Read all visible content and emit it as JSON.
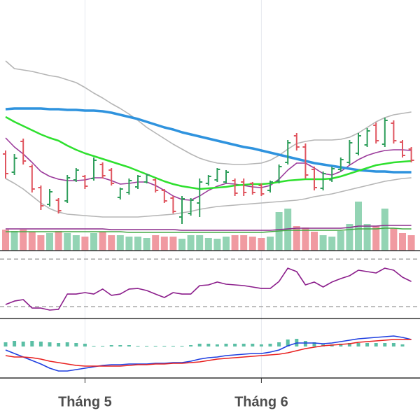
{
  "chart_data": [
    {
      "type": "ohlc",
      "ylim": [
        0,
        35
      ],
      "up_color": "#2e9e5b",
      "down_color": "#e0555f",
      "open": [
        13.0,
        10.4,
        14.8,
        11.2,
        8.2,
        5.8,
        6.4,
        6.3,
        9.3,
        9.8,
        9.5,
        11.5,
        10.7,
        6.8,
        7.5,
        8.3,
        9.0,
        9.3,
        7.8,
        6.7,
        4.0,
        4.5,
        6.0,
        8.8,
        9.3,
        9.0,
        9.2,
        9.0,
        8.8,
        8.5,
        7.8,
        9.1,
        11.8,
        15.6,
        14.0,
        10.8,
        8.1,
        9.3,
        10.8,
        11.8,
        13.1,
        14.3,
        17.1,
        14.4,
        17.4,
        14.7,
        13.7
      ],
      "high": [
        13.5,
        13.0,
        15.2,
        11.5,
        8.5,
        8.0,
        6.7,
        10.0,
        11.0,
        10.0,
        12.5,
        11.8,
        11.0,
        8.2,
        9.5,
        10.0,
        10.2,
        9.5,
        8.0,
        7.0,
        7.0,
        6.7,
        9.5,
        10.0,
        11.0,
        10.7,
        9.5,
        9.5,
        9.0,
        8.8,
        9.2,
        11.5,
        15.0,
        16.0,
        14.5,
        11.2,
        10.5,
        11.2,
        12.5,
        15.0,
        16.0,
        16.7,
        17.5,
        18.2,
        17.8,
        15.0,
        14.0
      ],
      "low": [
        9.5,
        10.0,
        11.5,
        7.5,
        5.0,
        5.5,
        4.5,
        6.0,
        9.0,
        8.0,
        9.2,
        9.5,
        8.5,
        6.5,
        7.2,
        8.0,
        8.8,
        7.5,
        6.0,
        4.5,
        3.0,
        4.2,
        4.0,
        8.5,
        9.0,
        8.8,
        7.0,
        7.0,
        7.2,
        7.0,
        7.5,
        8.8,
        11.5,
        13.5,
        9.5,
        7.8,
        7.8,
        9.0,
        10.5,
        11.5,
        12.8,
        14.0,
        14.5,
        14.0,
        14.5,
        12.5,
        11.8
      ],
      "close": [
        10.2,
        12.4,
        12.0,
        8.0,
        5.6,
        7.6,
        4.9,
        9.6,
        10.7,
        8.4,
        12.1,
        9.9,
        8.8,
        8.0,
        9.2,
        9.8,
        10.0,
        7.8,
        6.3,
        4.8,
        6.6,
        6.4,
        9.0,
        9.8,
        10.8,
        10.4,
        7.4,
        7.5,
        7.5,
        7.3,
        9.0,
        11.2,
        14.6,
        14.0,
        10.0,
        8.2,
        10.2,
        10.9,
        12.2,
        14.6,
        15.6,
        16.3,
        14.9,
        17.8,
        14.9,
        12.8,
        12.1
      ],
      "series": [
        {
          "color": "#b5b5b5",
          "values": [
            26.3,
            25.2,
            25.0,
            24.8,
            24.5,
            24.2,
            24.0,
            23.6,
            23.2,
            22.5,
            21.7,
            21.0,
            20.2,
            19.5,
            18.7,
            17.8,
            16.8,
            16.0,
            15.2,
            14.4,
            13.7,
            13.0,
            12.4,
            12.0,
            11.7,
            11.6,
            11.5,
            11.5,
            11.6,
            11.7,
            12.1,
            12.8,
            13.7,
            14.5,
            14.8,
            15.0,
            15.0,
            15.0,
            15.1,
            15.4,
            16.0,
            16.8,
            17.6,
            18.2,
            18.6,
            18.8,
            19.0
          ]
        },
        {
          "color": "#b5b5b5",
          "values": [
            9.5,
            8.8,
            8.0,
            7.0,
            6.0,
            5.2,
            4.7,
            4.4,
            4.3,
            4.2,
            4.1,
            4.0,
            4.0,
            4.0,
            4.0,
            4.0,
            4.1,
            4.2,
            4.3,
            4.4,
            4.6,
            4.8,
            5.1,
            5.3,
            5.5,
            5.6,
            5.7,
            5.8,
            5.9,
            6.0,
            6.1,
            6.2,
            6.3,
            6.4,
            6.6,
            6.9,
            7.1,
            7.3,
            7.6,
            7.9,
            8.2,
            8.5,
            8.8,
            9.1,
            9.3,
            9.5,
            9.6
          ]
        },
        {
          "color": "#9b3a9b",
          "values": [
            15.3,
            14.0,
            13.0,
            11.8,
            10.5,
            9.8,
            9.4,
            9.2,
            9.2,
            9.3,
            9.6,
            9.6,
            9.2,
            8.7,
            8.8,
            9.0,
            9.0,
            8.5,
            7.8,
            7.0,
            6.5,
            6.4,
            7.0,
            7.8,
            8.4,
            8.8,
            8.7,
            8.5,
            8.3,
            8.2,
            8.5,
            9.4,
            10.7,
            11.7,
            11.7,
            11.0,
            10.2,
            10.0,
            10.5,
            11.4,
            12.2,
            12.8,
            13.2,
            13.5,
            13.6,
            13.6,
            13.5
          ]
        },
        {
          "color": "#2f93de",
          "width": 3.5,
          "values": [
            19.4,
            19.5,
            19.5,
            19.5,
            19.5,
            19.4,
            19.4,
            19.3,
            19.3,
            19.2,
            19.2,
            19.1,
            18.9,
            18.6,
            18.3,
            18.0,
            17.6,
            17.2,
            16.8,
            16.5,
            16.1,
            15.8,
            15.5,
            15.2,
            14.9,
            14.6,
            14.3,
            14.0,
            13.8,
            13.5,
            13.2,
            12.9,
            12.6,
            12.3,
            12.0,
            11.7,
            11.5,
            11.3,
            11.1,
            10.9,
            10.7,
            10.6,
            10.5,
            10.5,
            10.4,
            10.4,
            10.4
          ]
        },
        {
          "color": "#2ee02e",
          "width": 2.5,
          "values": [
            18.3,
            17.6,
            17.0,
            16.4,
            15.8,
            15.3,
            14.9,
            14.2,
            13.6,
            13.1,
            12.7,
            12.3,
            11.9,
            11.5,
            11.1,
            10.6,
            10.1,
            9.6,
            9.1,
            8.7,
            8.4,
            8.2,
            8.0,
            8.1,
            8.2,
            8.3,
            8.5,
            8.6,
            8.7,
            8.7,
            8.8,
            9.0,
            9.2,
            9.3,
            9.4,
            9.4,
            9.4,
            9.5,
            9.8,
            10.2,
            10.6,
            11.0,
            11.4,
            11.6,
            11.8,
            11.9,
            12.0
          ]
        }
      ]
    },
    {
      "type": "bar",
      "ylim": [
        0,
        70
      ],
      "up_color": "#93d4b4",
      "down_color": "#f09aa1",
      "values": [
        30,
        28,
        30,
        27,
        22,
        25,
        28,
        25,
        22,
        20,
        25,
        27,
        22,
        22,
        20,
        20,
        18,
        22,
        20,
        20,
        17,
        22,
        22,
        18,
        17,
        20,
        22,
        22,
        20,
        18,
        20,
        55,
        60,
        35,
        33,
        27,
        22,
        20,
        28,
        38,
        70,
        38,
        35,
        60,
        32,
        25,
        22
      ],
      "series": [
        {
          "color": "#44aa44",
          "values": [
            27,
            27,
            27,
            27,
            27,
            27,
            27,
            27,
            27,
            27,
            27,
            27,
            27,
            27,
            26,
            26,
            26,
            26,
            26,
            26,
            26,
            26,
            26,
            26,
            26,
            26,
            26,
            26,
            26,
            26,
            27,
            28,
            29,
            29,
            29,
            29,
            29,
            29,
            29,
            30,
            31,
            31,
            31,
            32,
            32,
            31,
            31
          ]
        },
        {
          "color": "#8b2c8b",
          "values": [
            31,
            31,
            31,
            31,
            31,
            31,
            31,
            31,
            31,
            31,
            31,
            31,
            30,
            30,
            30,
            30,
            30,
            30,
            30,
            30,
            29,
            29,
            29,
            29,
            29,
            29,
            29,
            29,
            29,
            29,
            29,
            30,
            31,
            32,
            32,
            32,
            32,
            32,
            32,
            33,
            35,
            35,
            35,
            36,
            36,
            36,
            36
          ]
        }
      ]
    },
    {
      "type": "line",
      "ylim": [
        20,
        76
      ],
      "reference_lines": [
        30,
        70
      ],
      "series": [
        {
          "color": "#8b1d8b",
          "values": [
            31.8,
            34.7,
            35.9,
            28.8,
            28.8,
            27.1,
            27.7,
            40.6,
            40.6,
            41.8,
            40.6,
            44.8,
            39.5,
            40.6,
            44.8,
            45.3,
            43.6,
            40.6,
            37.7,
            41.8,
            40.6,
            40.6,
            47.7,
            48.3,
            50.7,
            48.9,
            48.3,
            47.7,
            46.5,
            45.3,
            45.3,
            51.2,
            62.4,
            59.5,
            48.3,
            50.7,
            46.5,
            50.7,
            53.6,
            56.0,
            60.7,
            59.5,
            58.3,
            62.4,
            60.7,
            54.8,
            51.2
          ]
        }
      ]
    },
    {
      "type": "line",
      "ylim": [
        -4.5,
        4
      ],
      "categories": [
        null,
        null,
        null,
        null,
        null,
        null,
        null,
        null,
        null,
        "Tháng 5",
        null,
        null,
        null,
        null,
        null,
        null,
        null,
        null,
        null,
        null,
        null,
        null,
        null,
        null,
        null,
        null,
        null,
        null,
        null,
        "Tháng 6",
        null,
        null,
        null,
        null,
        null,
        null,
        null,
        null,
        null,
        null,
        null,
        null,
        null,
        null,
        null,
        null,
        null
      ],
      "histogram": {
        "color": "#5bbfa5",
        "values": [
          0.6,
          0.8,
          0.7,
          0.8,
          0.7,
          0.6,
          0.5,
          0.6,
          0.5,
          0.4,
          0.1,
          0.1,
          0.2,
          0.2,
          0.2,
          0.1,
          0.1,
          0.1,
          0.1,
          0.1,
          0.1,
          0.2,
          0.4,
          0.4,
          0.3,
          0.4,
          0.4,
          0.4,
          0.4,
          0.3,
          0.4,
          0.6,
          1.0,
          1.1,
          0.8,
          0.6,
          0.3,
          0.3,
          0.4,
          0.5,
          0.5,
          0.5,
          0.5,
          0.5,
          0.5,
          0.3,
          0.0
        ]
      },
      "series": [
        {
          "color": "#1f3fe0",
          "values": [
            -0.5,
            -1.0,
            -1.5,
            -2.0,
            -2.5,
            -3.1,
            -3.5,
            -3.5,
            -3.3,
            -3.1,
            -2.9,
            -2.7,
            -2.6,
            -2.6,
            -2.5,
            -2.5,
            -2.5,
            -2.4,
            -2.4,
            -2.3,
            -2.3,
            -2.1,
            -1.8,
            -1.6,
            -1.5,
            -1.3,
            -1.2,
            -1.1,
            -1.0,
            -1.0,
            -0.8,
            -0.5,
            0.1,
            0.5,
            0.5,
            0.5,
            0.4,
            0.5,
            0.7,
            0.9,
            1.1,
            1.2,
            1.3,
            1.4,
            1.5,
            1.3,
            1.0
          ]
        },
        {
          "color": "#e8201f",
          "values": [
            -1.3,
            -1.5,
            -1.5,
            -1.6,
            -1.8,
            -2.1,
            -2.3,
            -2.5,
            -2.7,
            -2.8,
            -2.8,
            -2.8,
            -2.8,
            -2.8,
            -2.7,
            -2.6,
            -2.6,
            -2.5,
            -2.5,
            -2.4,
            -2.4,
            -2.3,
            -2.2,
            -2.0,
            -1.8,
            -1.7,
            -1.6,
            -1.5,
            -1.4,
            -1.3,
            -1.2,
            -1.1,
            -0.9,
            -0.6,
            -0.3,
            -0.1,
            0.1,
            0.2,
            0.3,
            0.4,
            0.6,
            0.7,
            0.8,
            0.9,
            1.0,
            1.0,
            1.0
          ]
        }
      ]
    }
  ]
}
